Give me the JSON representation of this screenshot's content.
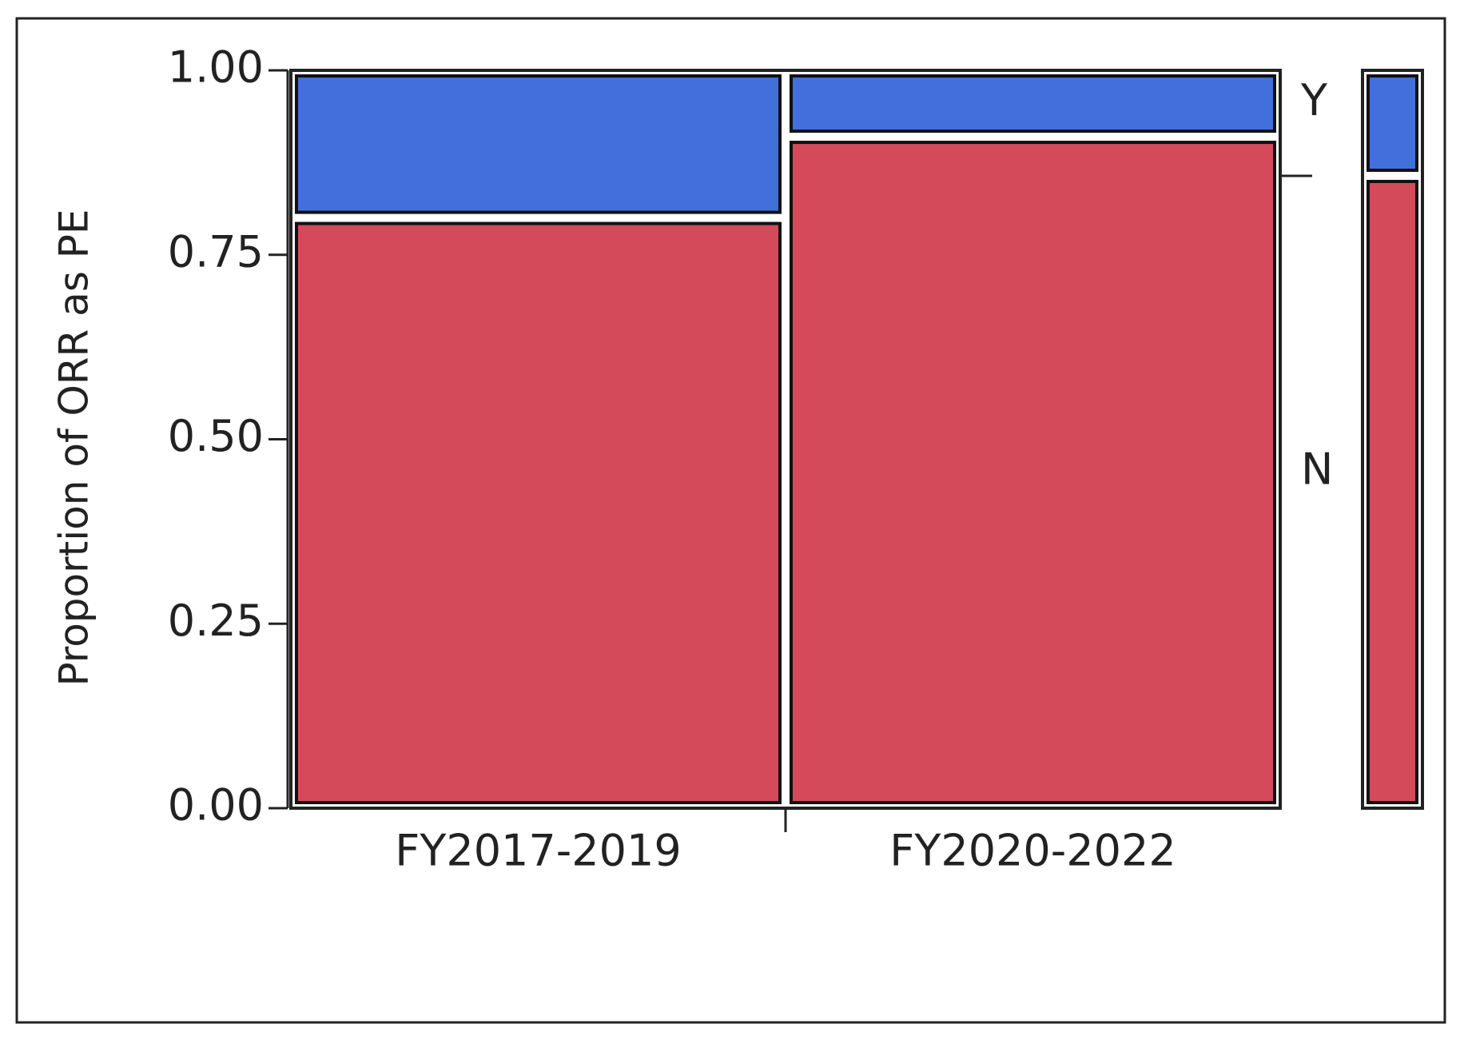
{
  "chart_data": {
    "type": "mosaic",
    "ylabel": "Proportion of ORR as PE",
    "categories": [
      "FY2017-2019",
      "FY2020-2022"
    ],
    "series": [
      {
        "name": "N",
        "color": "#d44a5a",
        "values": [
          0.8,
          0.91
        ],
        "overall": 0.857
      },
      {
        "name": "Y",
        "color": "#4170dc",
        "values": [
          0.2,
          0.09
        ],
        "overall": 0.143
      }
    ],
    "ylim": [
      0,
      1
    ],
    "yticks": [
      {
        "value": 0,
        "label": "0.00"
      },
      {
        "value": 0.25,
        "label": "0.25"
      },
      {
        "value": 0.5,
        "label": "0.50"
      },
      {
        "value": 0.75,
        "label": "0.75"
      },
      {
        "value": 1,
        "label": "1.00"
      }
    ]
  }
}
